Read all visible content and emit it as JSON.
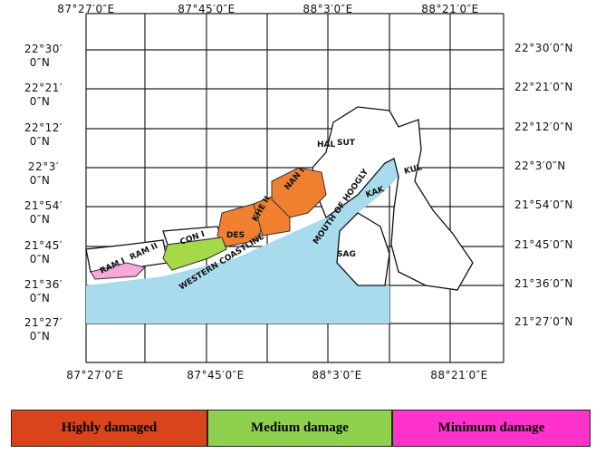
{
  "map": {
    "top_longitudes": [
      "87°27′0″E",
      "87°45′0″E",
      "88°3′0″E",
      "88°21′0″E"
    ],
    "bottom_longitudes": [
      "87°27′0″E",
      "87°45′0″E",
      "88°3′0″E",
      "88°21′0″E"
    ],
    "left_latitudes": [
      [
        "22°30′",
        "0″N"
      ],
      [
        "22°21′",
        "0″N"
      ],
      [
        "22°12′",
        "0″N"
      ],
      [
        "22°3′",
        "0″N"
      ],
      [
        "21°54′",
        "0″N"
      ],
      [
        "21°45′",
        "0″N"
      ],
      [
        "21°36′",
        "0″N"
      ],
      [
        "21°27′",
        "0″N"
      ]
    ],
    "right_latitudes": [
      "22°30′0″N",
      "22°21′0″N",
      "22°12′0″N",
      "22°3′0″N",
      "21°54′0″N",
      "21°45′0″N",
      "21°36′0″N",
      "21°27′0″N"
    ],
    "regions": [
      "HAL",
      "SUT",
      "KUL",
      "KAK",
      "SAG",
      "NAN I",
      "KHE II",
      "DES",
      "CON I",
      "RAM II",
      "RAM I"
    ],
    "features": [
      "WESTERN COASTLINE",
      "MOUTH OF HOOGLY"
    ]
  },
  "legend": [
    "Highly damaged",
    "Medium damage",
    "Minimum damage"
  ]
}
